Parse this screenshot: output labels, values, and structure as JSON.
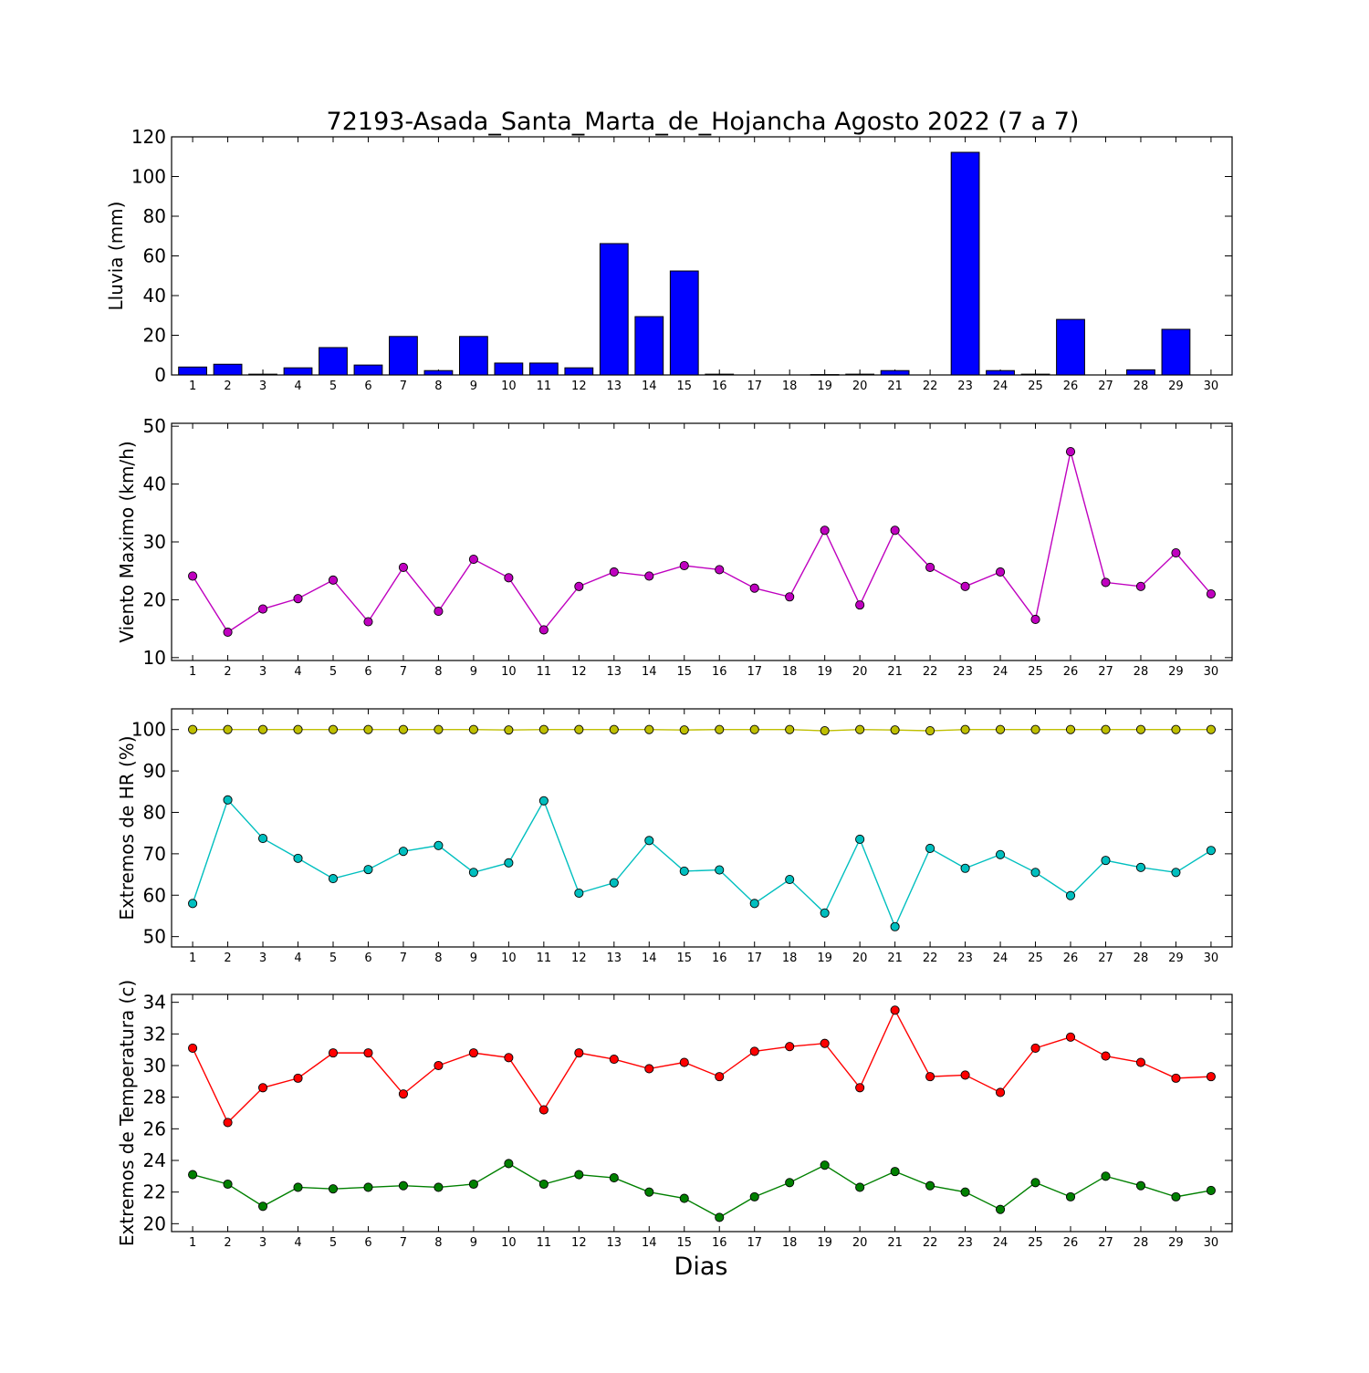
{
  "chart_data": [
    {
      "type": "bar",
      "title": "72193-Asada_Santa_Marta_de_Hojancha Agosto 2022  (7 a 7)",
      "ylabel": "Lluvia (mm)",
      "xlabel": "",
      "categories": [
        1,
        2,
        3,
        4,
        5,
        6,
        7,
        8,
        9,
        10,
        11,
        12,
        13,
        14,
        15,
        16,
        17,
        18,
        19,
        20,
        21,
        22,
        23,
        24,
        25,
        26,
        27,
        28,
        29,
        30
      ],
      "values": [
        4.0,
        5.4,
        0.4,
        3.6,
        13.8,
        5.0,
        19.4,
        2.2,
        19.4,
        6.0,
        6.0,
        3.6,
        66.2,
        29.4,
        52.4,
        0.4,
        0.0,
        0.0,
        0.2,
        0.4,
        2.2,
        0.0,
        112.2,
        2.2,
        0.4,
        28.0,
        0.0,
        2.6,
        23.0,
        0.0
      ],
      "ylim": [
        0,
        120
      ],
      "yticks": [
        0,
        20,
        40,
        60,
        80,
        100,
        120
      ],
      "color": "#0000ff",
      "grid": false
    },
    {
      "type": "line",
      "ylabel": "Viento Maximo (km/h)",
      "xlabel": "",
      "x": [
        1,
        2,
        3,
        4,
        5,
        6,
        7,
        8,
        9,
        10,
        11,
        12,
        13,
        14,
        15,
        16,
        17,
        18,
        19,
        20,
        21,
        22,
        23,
        24,
        25,
        26,
        27,
        28,
        29,
        30
      ],
      "series": [
        {
          "values": [
            24.1,
            14.4,
            18.4,
            20.2,
            23.4,
            16.2,
            25.6,
            18.0,
            27.0,
            23.8,
            14.8,
            22.3,
            24.8,
            24.1,
            25.9,
            25.2,
            22.0,
            20.5,
            32.0,
            19.1,
            32.0,
            25.6,
            22.3,
            24.8,
            16.6,
            45.6,
            23.0,
            22.3,
            28.1,
            21.0
          ],
          "color": "#bf00bf"
        }
      ],
      "ylim": [
        9.5,
        50.5
      ],
      "yticks": [
        10,
        20,
        30,
        40,
        50
      ],
      "grid": false
    },
    {
      "type": "line",
      "ylabel": "Extremos de HR (%)",
      "xlabel": "",
      "x": [
        1,
        2,
        3,
        4,
        5,
        6,
        7,
        8,
        9,
        10,
        11,
        12,
        13,
        14,
        15,
        16,
        17,
        18,
        19,
        20,
        21,
        22,
        23,
        24,
        25,
        26,
        27,
        28,
        29,
        30
      ],
      "series": [
        {
          "values": [
            100,
            100,
            100,
            100,
            100,
            100,
            100,
            100,
            100,
            99.9,
            100,
            100,
            100,
            100,
            99.9,
            100,
            100,
            100,
            99.7,
            100,
            99.9,
            99.7,
            100,
            100,
            100,
            100,
            100,
            100,
            100,
            100
          ],
          "color": "#bfbf00"
        },
        {
          "values": [
            58.0,
            83.0,
            73.7,
            68.9,
            64.0,
            66.2,
            70.6,
            72.0,
            65.5,
            67.8,
            82.8,
            60.5,
            63.0,
            73.2,
            65.8,
            66.1,
            58.0,
            63.8,
            55.7,
            73.5,
            52.4,
            71.3,
            66.5,
            69.8,
            65.5,
            59.9,
            68.4,
            66.7,
            65.5,
            70.8
          ],
          "color": "#00bfbf"
        }
      ],
      "ylim": [
        47.5,
        105
      ],
      "yticks": [
        50,
        60,
        70,
        80,
        90,
        100
      ],
      "grid": false
    },
    {
      "type": "line",
      "ylabel": "Extremos de Temperatura (c)",
      "xlabel": "Dias",
      "x": [
        1,
        2,
        3,
        4,
        5,
        6,
        7,
        8,
        9,
        10,
        11,
        12,
        13,
        14,
        15,
        16,
        17,
        18,
        19,
        20,
        21,
        22,
        23,
        24,
        25,
        26,
        27,
        28,
        29,
        30
      ],
      "series": [
        {
          "values": [
            31.1,
            26.4,
            28.6,
            29.2,
            30.8,
            30.8,
            28.2,
            30.0,
            30.8,
            30.5,
            27.2,
            30.8,
            30.4,
            29.8,
            30.2,
            29.3,
            30.9,
            31.2,
            31.4,
            28.6,
            33.5,
            29.3,
            29.4,
            28.3,
            31.1,
            31.8,
            30.6,
            30.2,
            29.2,
            29.3
          ],
          "color": "#ff0000"
        },
        {
          "values": [
            23.1,
            22.5,
            21.1,
            22.3,
            22.2,
            22.3,
            22.4,
            22.3,
            22.5,
            23.8,
            22.5,
            23.1,
            22.9,
            22.0,
            21.6,
            20.4,
            21.7,
            22.6,
            23.7,
            22.3,
            23.3,
            22.4,
            22.0,
            20.9,
            22.6,
            21.7,
            23.0,
            22.4,
            21.7,
            22.1
          ],
          "color": "#008000"
        }
      ],
      "ylim": [
        19.5,
        34.5
      ],
      "yticks": [
        20,
        22,
        24,
        26,
        28,
        30,
        32,
        34
      ],
      "grid": false
    }
  ]
}
